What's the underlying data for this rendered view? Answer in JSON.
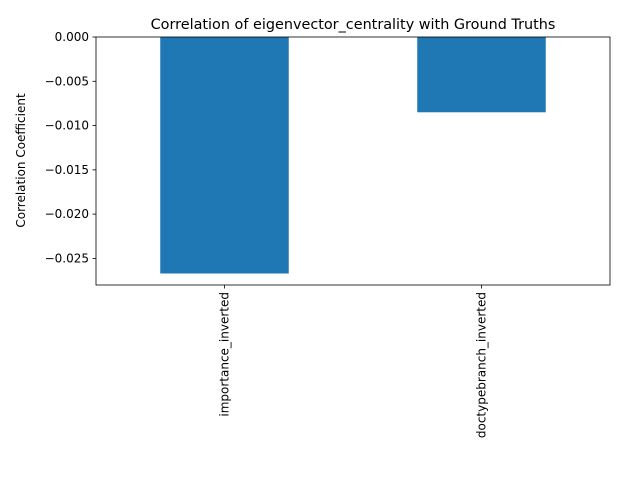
{
  "chart_data": {
    "type": "bar",
    "title": "Correlation of eigenvector_centrality with Ground Truths",
    "xlabel": "",
    "ylabel": "Correlation Coefficient",
    "categories": [
      "importance_inverted",
      "doctypebranch_inverted"
    ],
    "values": [
      -0.0267,
      -0.0085
    ],
    "ylim": [
      -0.028,
      0.0
    ],
    "yticks": [
      0.0,
      -0.005,
      -0.01,
      -0.015,
      -0.02,
      -0.025
    ],
    "ytick_labels": [
      "0.000",
      "−0.005",
      "−0.010",
      "−0.015",
      "−0.020",
      "−0.025"
    ],
    "grid": false,
    "legend": "none",
    "bar_color": "#1f77b4"
  }
}
